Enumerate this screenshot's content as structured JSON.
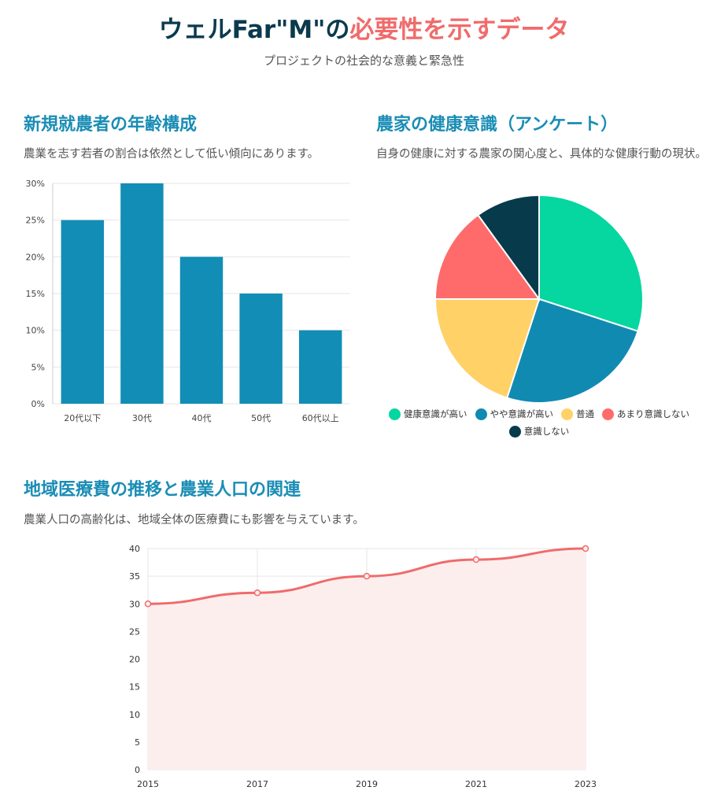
{
  "header": {
    "title_main": "ウェルFar\"M\"の",
    "title_accent": "必要性を示すデータ",
    "subtitle": "プロジェクトの社会的な意義と緊急性"
  },
  "section_age": {
    "title": "新規就農者の年齢構成",
    "desc": "農業を志す若者の割合は依然として低い傾向にあります。"
  },
  "section_health": {
    "title": "農家の健康意識（アンケート）",
    "desc": "自身の健康に対する農家の関心度と、具体的な健康行動の現状。"
  },
  "section_medical": {
    "title": "地域医療費の推移と農業人口の関連",
    "desc": "農業人口の高齢化は、地域全体の医療費にも影響を与えています。"
  },
  "chart_data": [
    {
      "type": "bar",
      "categories": [
        "20代以下",
        "30代",
        "40代",
        "50代",
        "60代以上"
      ],
      "values": [
        25,
        30,
        20,
        15,
        10
      ],
      "ylim": [
        0,
        30
      ],
      "yticks": [
        "0%",
        "5%",
        "10%",
        "15%",
        "20%",
        "25%",
        "30%"
      ],
      "color": "#128db5",
      "grid": true
    },
    {
      "type": "pie",
      "labels": [
        "健康意識が高い",
        "やや意識が高い",
        "普通",
        "あまり意識しない",
        "意識しない"
      ],
      "values": [
        30,
        25,
        20,
        15,
        10
      ],
      "colors": [
        "#06d6a0",
        "#118ab2",
        "#ffd166",
        "#ff6b6b",
        "#073b4c"
      ],
      "legend": "bottom"
    },
    {
      "type": "area",
      "x": [
        "2015",
        "2017",
        "2019",
        "2021",
        "2023"
      ],
      "values": [
        30,
        32,
        35,
        38,
        40
      ],
      "ylim": [
        0,
        40
      ],
      "yticks": [
        "0",
        "5",
        "10",
        "15",
        "20",
        "25",
        "30",
        "35",
        "40"
      ],
      "line_color": "#f06b6b",
      "fill_color": "#fdeeee",
      "grid": true
    }
  ]
}
